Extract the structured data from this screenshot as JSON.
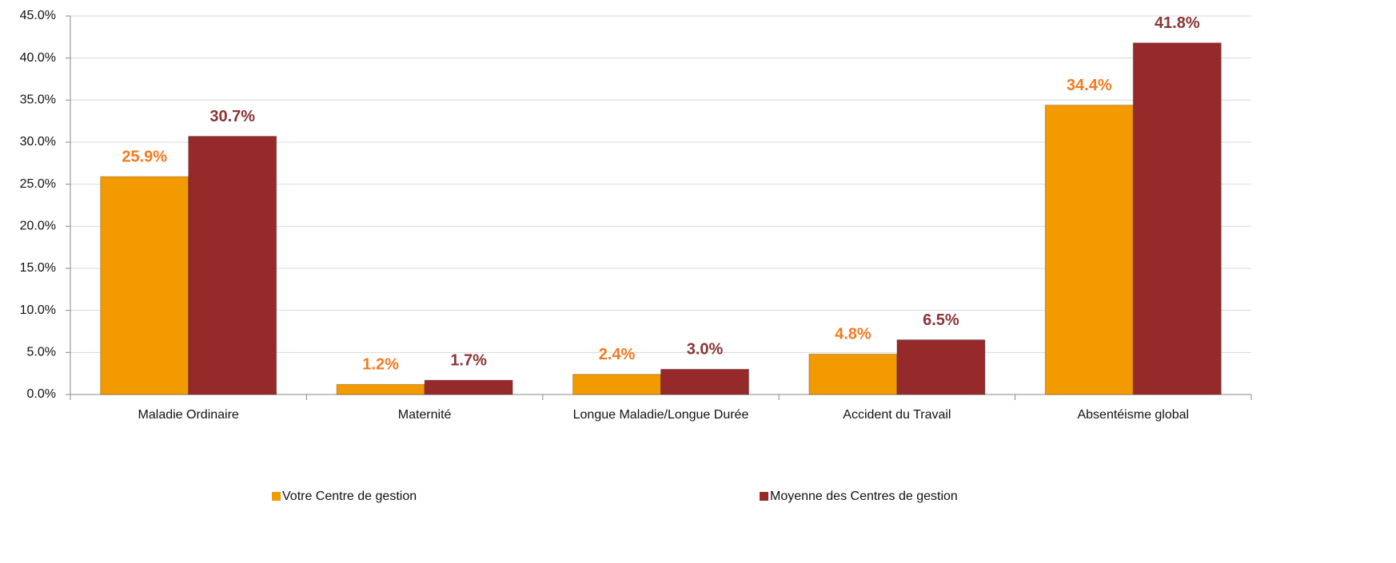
{
  "chart_data": {
    "type": "bar",
    "categories": [
      "Maladie Ordinaire",
      "Maternité",
      "Longue Maladie/Longue Durée",
      "Accident du Travail",
      "Absentéisme global"
    ],
    "series": [
      {
        "name": "Votre Centre de gestion",
        "color": "#f29a00",
        "label_color": "#f47a20",
        "values": [
          25.9,
          1.2,
          2.4,
          4.8,
          34.4
        ],
        "value_labels": [
          "25.9%",
          "1.2%",
          "2.4%",
          "4.8%",
          "34.4%"
        ]
      },
      {
        "name": "Moyenne des Centres de gestion",
        "color": "#962a2a",
        "label_color": "#8b3535",
        "values": [
          30.7,
          1.7,
          3.0,
          6.5,
          41.8
        ],
        "value_labels": [
          "30.7%",
          "1.7%",
          "3.0%",
          "6.5%",
          "41.8%"
        ]
      }
    ],
    "ylim": [
      0,
      45
    ],
    "yticks": [
      {
        "value": 0,
        "label": "0.0%"
      },
      {
        "value": 5,
        "label": "5.0%"
      },
      {
        "value": 10,
        "label": "10.0%"
      },
      {
        "value": 15,
        "label": "15.0%"
      },
      {
        "value": 20,
        "label": "20.0%"
      },
      {
        "value": 25,
        "label": "25.0%"
      },
      {
        "value": 30,
        "label": "30.0%"
      },
      {
        "value": 35,
        "label": "35.0%"
      },
      {
        "value": 40,
        "label": "40.0%"
      },
      {
        "value": 45,
        "label": "45.0%"
      }
    ],
    "grid": true
  }
}
